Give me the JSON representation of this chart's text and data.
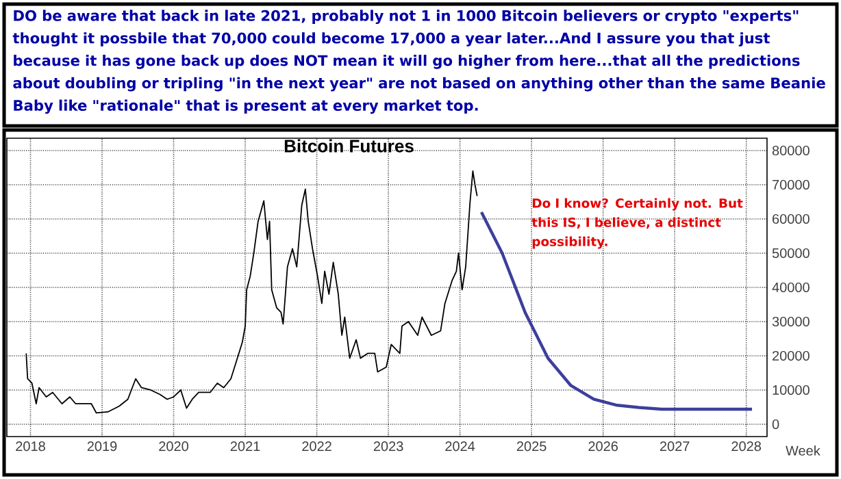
{
  "chart_data": {
    "type": "line",
    "title": "Bitcoin Futures",
    "xlabel": "Week",
    "annotations": [
      "DO be aware that back in late 2021, probably not 1 in 1000 Bitcoin believers or crypto \"experts\" thought it possbile that 70,000 could become 17,000 a year later...And I assure you that just because it has gone back up does NOT mean it will go higher from here...that all the predictions about doubling or tripling \"in the next year\" are not based on anything other than the same Beanie Baby like \"rationale\" that is present at every market top.",
      "Do I know? Certainly not. But this IS, I believe, a distinct possibility."
    ],
    "series": [
      {
        "color": "#000000",
        "x": [
          2017.94,
          2017.96,
          2018.02,
          2018.08,
          2018.12,
          2018.22,
          2018.31,
          2018.44,
          2018.55,
          2018.63,
          2018.85,
          2018.92,
          2019.08,
          2019.24,
          2019.36,
          2019.47,
          2019.55,
          2019.68,
          2019.81,
          2019.91,
          2020.0,
          2020.1,
          2020.18,
          2020.26,
          2020.35,
          2020.51,
          2020.61,
          2020.7,
          2020.8,
          2020.89,
          2020.96,
          2021.0,
          2021.02,
          2021.07,
          2021.12,
          2021.18,
          2021.26,
          2021.31,
          2021.34,
          2021.37,
          2021.44,
          2021.5,
          2021.53,
          2021.59,
          2021.66,
          2021.72,
          2021.79,
          2021.84,
          2021.88,
          2021.94,
          2022.01,
          2022.07,
          2022.11,
          2022.17,
          2022.23,
          2022.3,
          2022.35,
          2022.39,
          2022.46,
          2022.55,
          2022.61,
          2022.71,
          2022.81,
          2022.85,
          2022.97,
          2023.04,
          2023.16,
          2023.19,
          2023.28,
          2023.41,
          2023.47,
          2023.6,
          2023.73,
          2023.79,
          2023.89,
          2023.95,
          2023.98,
          2024.03,
          2024.08,
          2024.11,
          2024.14,
          2024.18,
          2024.21,
          2024.24
        ],
        "values": [
          20700,
          13300,
          12000,
          6000,
          10700,
          8000,
          9300,
          6000,
          8000,
          6000,
          6000,
          3300,
          3600,
          5300,
          7300,
          13300,
          10700,
          10000,
          8700,
          7300,
          8000,
          10000,
          4700,
          7300,
          9300,
          9300,
          12000,
          10700,
          13300,
          19300,
          24000,
          28700,
          39300,
          43300,
          50000,
          59300,
          65300,
          54000,
          59300,
          39300,
          34000,
          32700,
          29300,
          46000,
          51300,
          46000,
          64000,
          68700,
          59300,
          51300,
          43300,
          35300,
          44700,
          38000,
          47300,
          38000,
          26000,
          31300,
          19300,
          24700,
          19300,
          20700,
          20700,
          15300,
          16700,
          23300,
          20700,
          28700,
          30000,
          26000,
          31300,
          26000,
          27300,
          35300,
          42000,
          44700,
          50000,
          39300,
          46000,
          55300,
          64700,
          74000,
          70000,
          66700
        ]
      },
      {
        "color": "#3c3f9c",
        "x": [
          2024.3,
          2024.59,
          2024.91,
          2025.23,
          2025.55,
          2025.87,
          2026.18,
          2026.5,
          2026.82,
          2027.14,
          2027.46,
          2028.08
        ],
        "values": [
          62000,
          50000,
          32700,
          19300,
          11300,
          7300,
          5600,
          4900,
          4400,
          4400,
          4400,
          4400
        ]
      }
    ],
    "xlim": [
      2017.67,
      2028.29
    ],
    "xticks": [
      2018,
      2019,
      2020,
      2021,
      2022,
      2023,
      2024,
      2025,
      2026,
      2027,
      2028
    ],
    "ylim": [
      -3600,
      83600
    ],
    "yticks": [
      0,
      10000,
      20000,
      30000,
      40000,
      50000,
      60000,
      70000,
      80000
    ],
    "grid": true,
    "line_style": "solid"
  }
}
